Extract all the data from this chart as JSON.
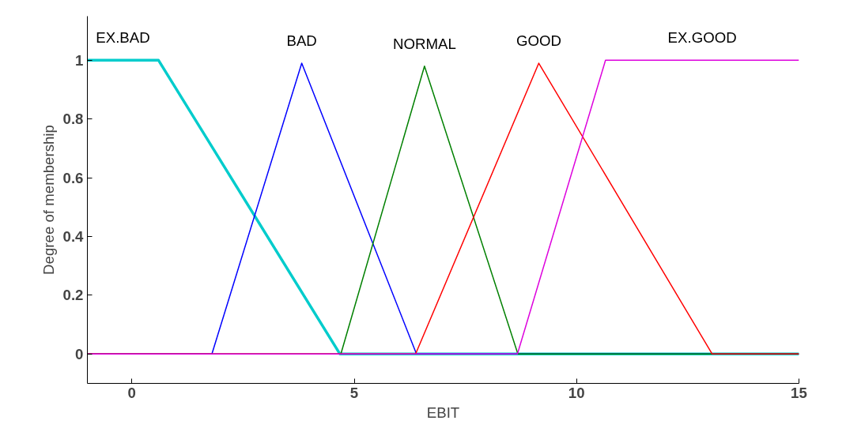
{
  "chart_data": {
    "type": "line",
    "xlabel": "EBIT",
    "ylabel": "Degree of membership",
    "xlim": [
      -1,
      15
    ],
    "ylim": [
      -0.1,
      1.15
    ],
    "xticks": [
      0,
      5,
      10,
      15
    ],
    "yticks": [
      0,
      0.2,
      0.4,
      0.6,
      0.8,
      {
        "value": 1,
        "label": "1"
      }
    ],
    "grid": false,
    "marker": "none",
    "line_style": "solid",
    "series": [
      {
        "name": "EX.BAD",
        "color": "#00cccc",
        "x": [
          -1,
          0.6,
          4.68,
          15
        ],
        "values": [
          1,
          1,
          0,
          0
        ]
      },
      {
        "name": "BAD",
        "color": "#0000ff",
        "x": [
          -1,
          1.8,
          3.82,
          6.4,
          15
        ],
        "values": [
          0,
          0,
          0.99,
          0,
          0
        ]
      },
      {
        "name": "NORMAL",
        "color": "#008000",
        "x": [
          -1,
          4.7,
          6.58,
          8.68,
          15
        ],
        "values": [
          0,
          0,
          0.98,
          0,
          0
        ]
      },
      {
        "name": "GOOD",
        "color": "#ff0000",
        "x": [
          -1,
          6.38,
          9.15,
          13.05,
          15
        ],
        "values": [
          0,
          0,
          0.99,
          0,
          0
        ]
      },
      {
        "name": "EX.GOOD",
        "color": "#dd00dd",
        "x": [
          -1,
          8.67,
          10.65,
          15
        ],
        "values": [
          0,
          0,
          1,
          1
        ]
      }
    ]
  }
}
